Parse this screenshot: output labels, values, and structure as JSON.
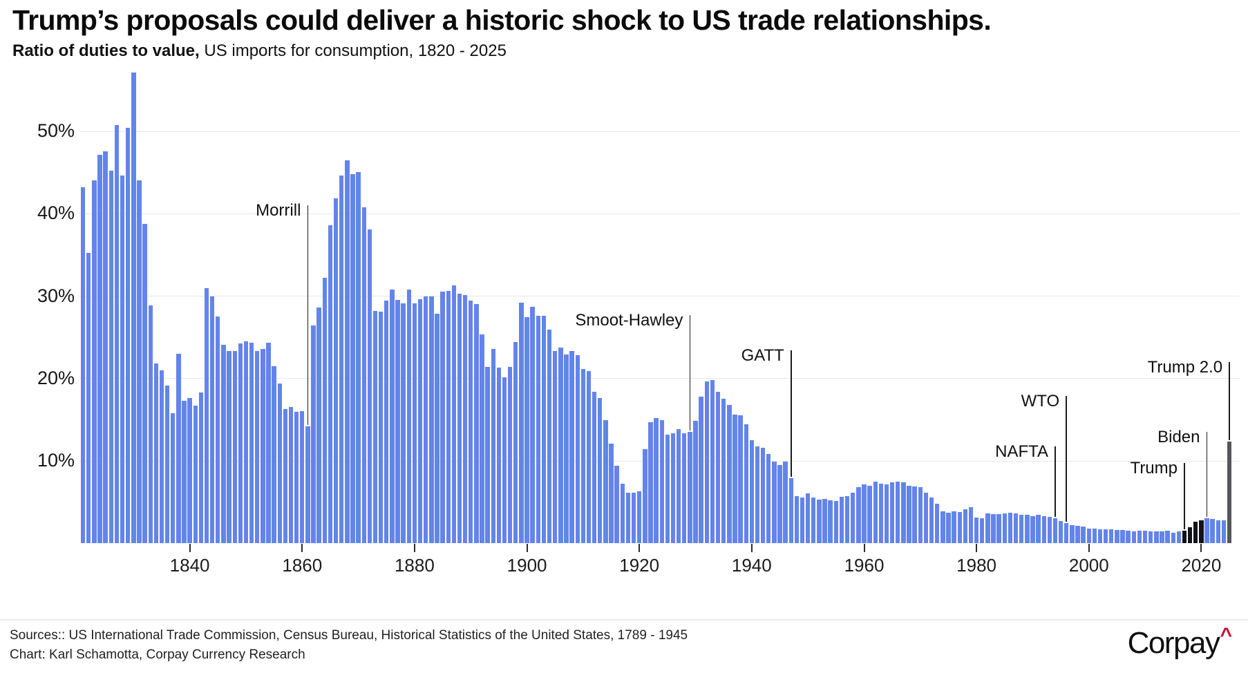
{
  "title": "Trump’s proposals could deliver a historic shock to US trade relationships.",
  "subtitle": {
    "bold": "Ratio of duties to value,",
    "rest": " US imports for consumption, 1820 - 2025"
  },
  "chart_data": {
    "type": "bar",
    "title": "Trump’s proposals could deliver a historic shock to US trade relationships.",
    "subtitle": "Ratio of duties to value, US imports for consumption, 1820 - 2025",
    "xlabel": "",
    "ylabel": "Ratio of duties to value (%)",
    "ylim": [
      0,
      58
    ],
    "grid": true,
    "start_year": 1821,
    "end_year": 2025,
    "values": [
      43.2,
      35.2,
      44.0,
      47.1,
      47.5,
      45.2,
      50.7,
      44.6,
      50.4,
      57.1,
      44.0,
      38.7,
      28.8,
      21.8,
      21.0,
      19.1,
      15.8,
      23.0,
      17.3,
      17.6,
      16.7,
      18.3,
      30.9,
      29.9,
      27.5,
      24.1,
      23.3,
      23.3,
      24.2,
      24.5,
      24.3,
      23.3,
      23.6,
      24.3,
      21.5,
      19.4,
      16.3,
      16.5,
      15.9,
      16.0,
      14.2,
      26.4,
      28.6,
      32.2,
      38.6,
      41.8,
      44.6,
      46.4,
      44.8,
      45.0,
      40.7,
      38.1,
      28.2,
      28.1,
      29.4,
      30.8,
      29.5,
      29.1,
      30.8,
      29.1,
      29.6,
      29.9,
      29.9,
      27.8,
      30.5,
      30.6,
      31.3,
      30.3,
      30.1,
      29.4,
      29.0,
      25.3,
      21.4,
      23.6,
      21.3,
      20.1,
      21.4,
      24.4,
      29.2,
      27.4,
      28.7,
      27.6,
      27.6,
      25.9,
      23.3,
      23.7,
      22.9,
      23.3,
      22.8,
      21.1,
      20.9,
      18.4,
      17.6,
      14.9,
      12.1,
      9.4,
      7.2,
      6.1,
      6.1,
      6.3,
      11.4,
      14.7,
      15.2,
      14.9,
      13.2,
      13.3,
      13.8,
      13.3,
      13.5,
      14.8,
      17.8,
      19.6,
      19.8,
      18.4,
      17.5,
      16.8,
      15.6,
      15.5,
      14.4,
      12.5,
      11.7,
      11.6,
      10.8,
      9.9,
      9.5,
      9.9,
      7.9,
      5.7,
      5.5,
      6.0,
      5.5,
      5.3,
      5.4,
      5.2,
      5.1,
      5.6,
      5.7,
      6.1,
      6.8,
      7.1,
      7.0,
      7.5,
      7.2,
      7.1,
      7.4,
      7.5,
      7.4,
      7.0,
      6.9,
      6.8,
      6.1,
      5.5,
      4.8,
      3.9,
      3.7,
      3.9,
      3.8,
      4.1,
      4.4,
      3.1,
      3.0,
      3.6,
      3.5,
      3.5,
      3.6,
      3.7,
      3.6,
      3.4,
      3.4,
      3.3,
      3.4,
      3.3,
      3.2,
      3.0,
      2.7,
      2.4,
      2.2,
      2.1,
      2.0,
      1.8,
      1.8,
      1.7,
      1.7,
      1.7,
      1.6,
      1.6,
      1.5,
      1.4,
      1.5,
      1.5,
      1.4,
      1.4,
      1.4,
      1.5,
      1.3,
      1.4,
      1.5,
      1.9,
      2.6,
      2.8,
      3.0,
      2.9,
      2.8,
      2.8,
      12.3
    ],
    "y_ticks": [
      {
        "pct": 10,
        "label": "10%"
      },
      {
        "pct": 20,
        "label": "20%"
      },
      {
        "pct": 30,
        "label": "30%"
      },
      {
        "pct": 40,
        "label": "40%"
      },
      {
        "pct": 50,
        "label": "50%"
      }
    ],
    "x_ticks": [
      1840,
      1860,
      1880,
      1900,
      1920,
      1940,
      1960,
      1980,
      2000,
      2020
    ],
    "annotations": [
      {
        "label": "Morrill",
        "year": 1861,
        "line_top_pct": 41.0
      },
      {
        "label": "Smoot-Hawley",
        "year": 1929,
        "line_top_pct": 27.7
      },
      {
        "label": "GATT",
        "year": 1947,
        "line_top_pct": 23.4
      },
      {
        "label": "NAFTA",
        "year": 1994,
        "line_top_pct": 11.7
      },
      {
        "label": "WTO",
        "year": 1996,
        "line_top_pct": 17.9
      },
      {
        "label": "Trump",
        "year": 2017,
        "line_top_pct": 9.7
      },
      {
        "label": "Biden",
        "year": 2021,
        "line_top_pct": 13.5
      },
      {
        "label": "Trump 2.0",
        "year": 2025,
        "line_top_pct": 22.0
      }
    ],
    "colors": {
      "bar_default": "#6384ea",
      "bar_trump_first_term": "#12121a",
      "bar_trump_2025": "#56565a"
    },
    "black_bar_years": [
      2017,
      2018,
      2019,
      2020
    ],
    "gray_bar_years": [
      2025
    ],
    "legend_position": "none"
  },
  "footer": {
    "sources_line": "Sources:: US International Trade Commission, Census Bureau, Historical Statistics of the United States, 1789 - 1945",
    "chart_line": "Chart: Karl Schamotta, Corpay Currency Research",
    "logo_text": "Corpay",
    "logo_caret": "^",
    "logo_caret_color": "#c8102e"
  }
}
